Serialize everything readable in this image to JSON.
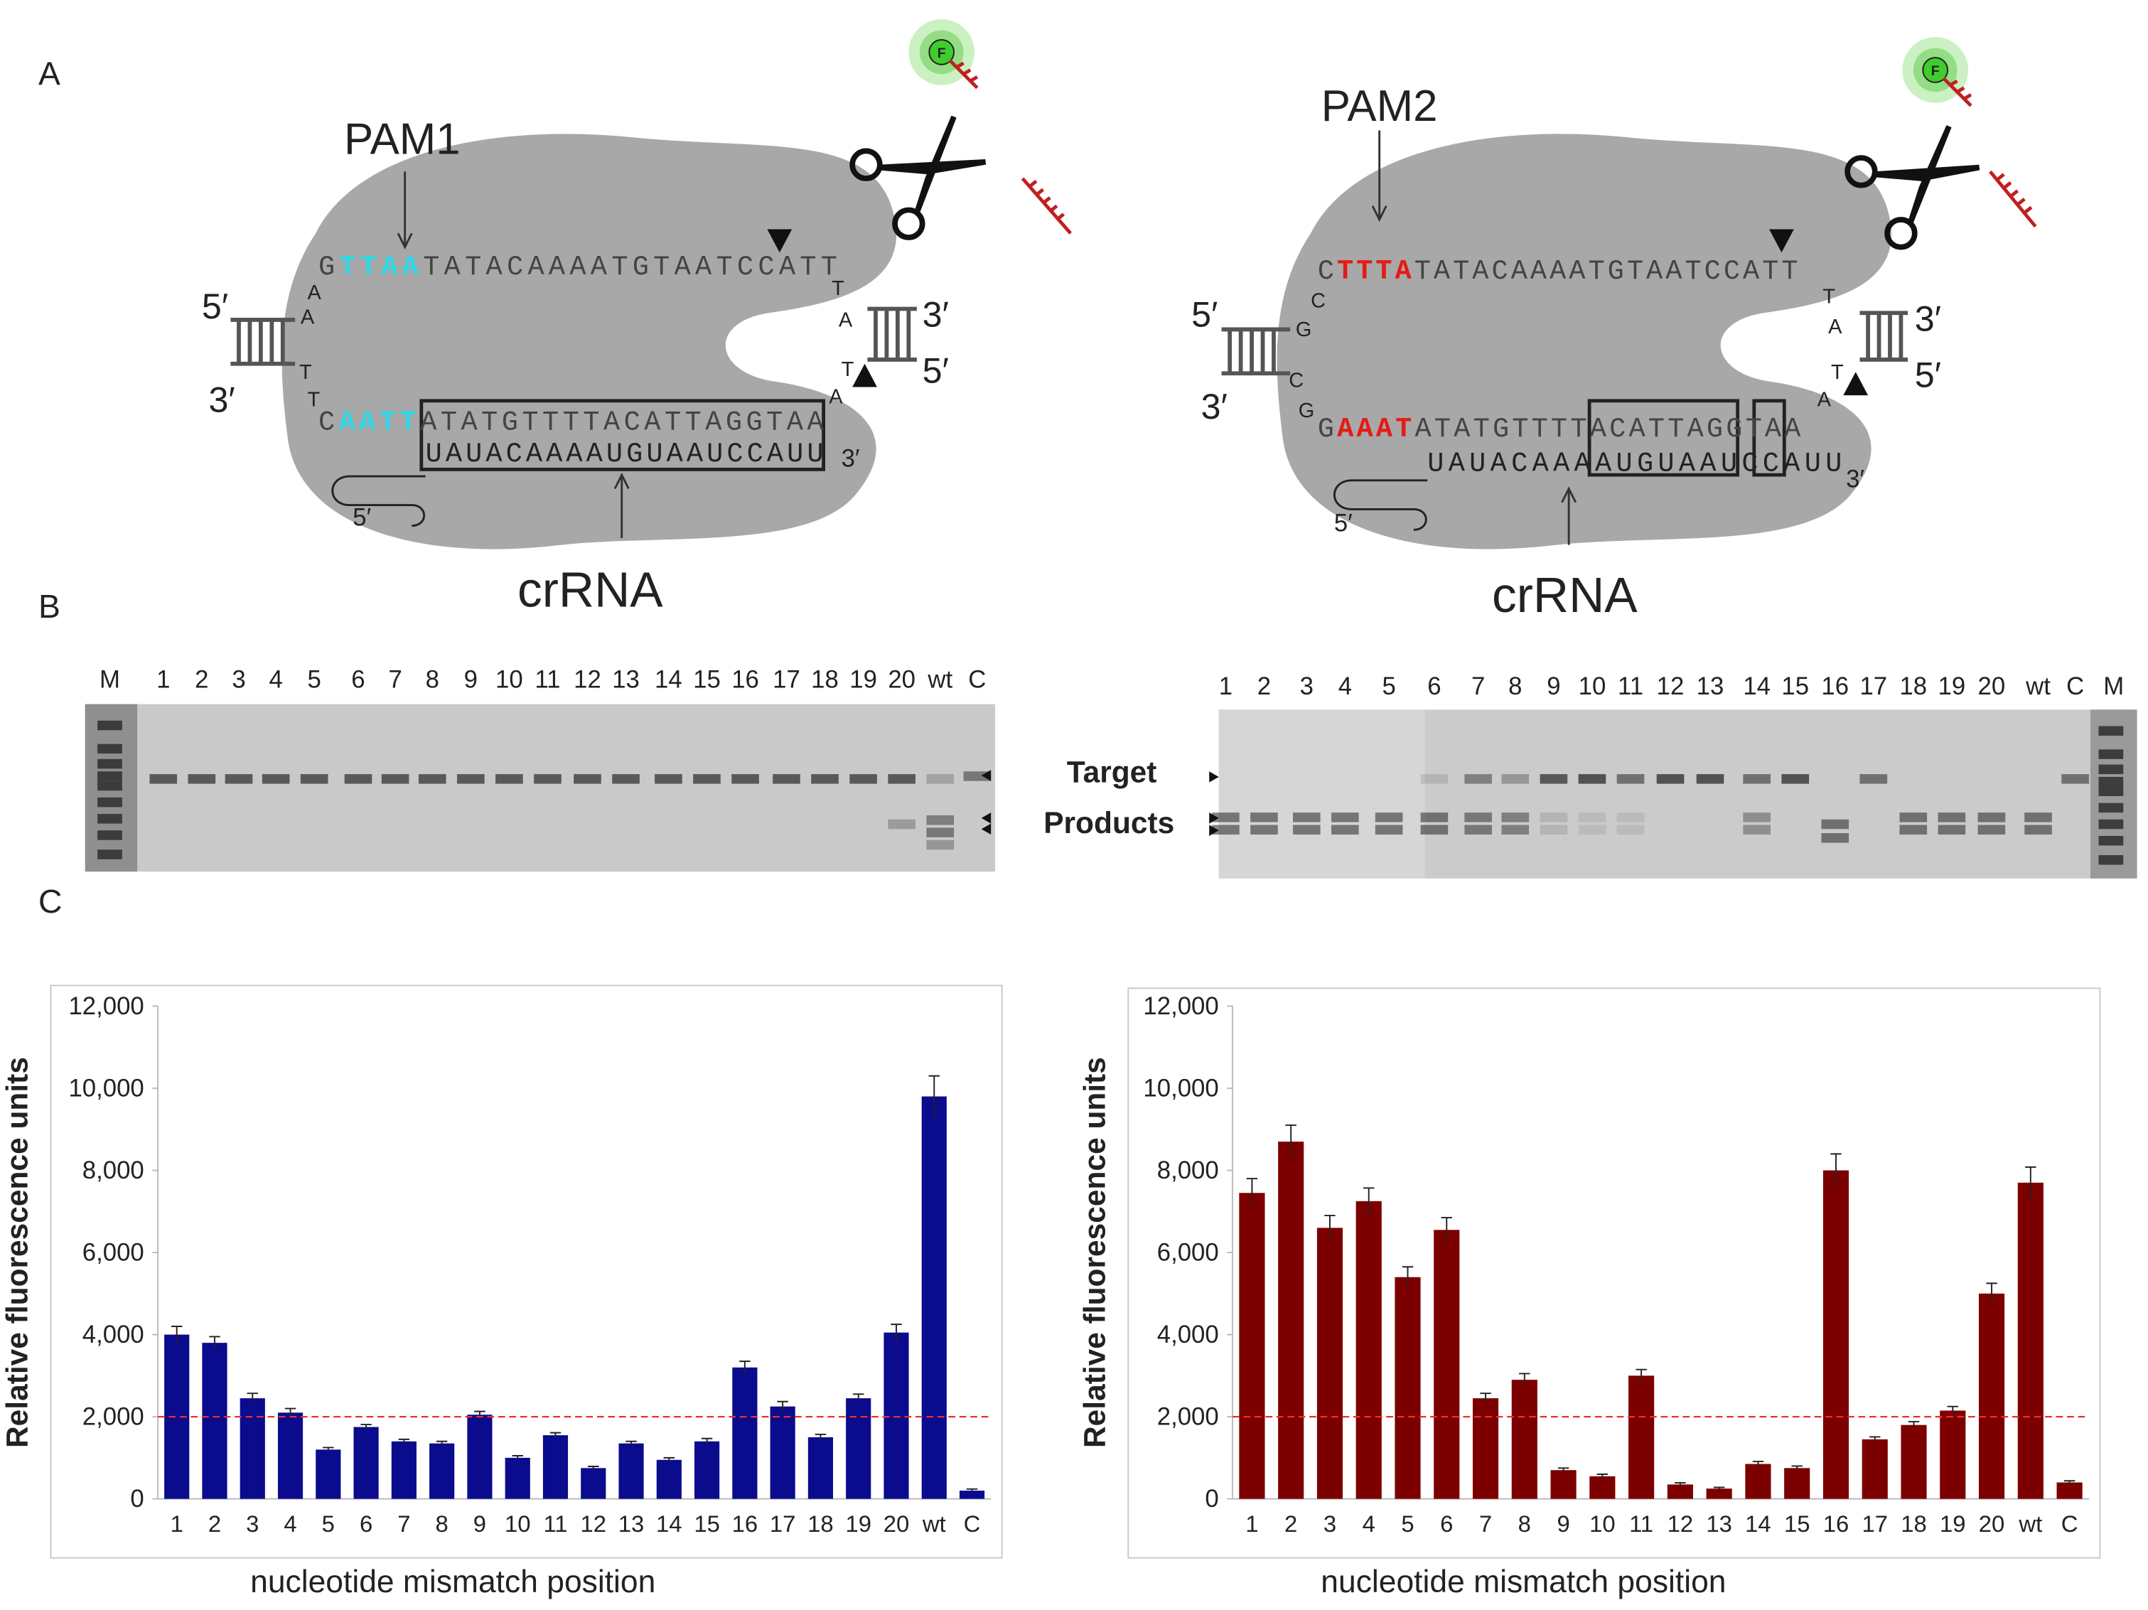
{
  "panel_labels": [
    "A",
    "B",
    "C"
  ],
  "panel_a": {
    "left": {
      "pam": "PAM1",
      "crrna": "crRNA",
      "top_sequence": [
        "G",
        "TTAA",
        "TATACAAAATGTAATCCATT"
      ],
      "bottom_sequence": [
        "C",
        "AATT",
        "ATATGTTTTACATTAGGTAA"
      ],
      "crrna_sequence": "UAUACAAAAUGUAAUCCAUU",
      "left_bases": [
        "A",
        "A",
        "T",
        "T"
      ],
      "right_bases": [
        "T",
        "A",
        "T",
        "A"
      ],
      "duplex_ends": [
        "5′",
        "3′",
        "3′",
        "5′"
      ],
      "crrna_ends": [
        "5′",
        "3′"
      ],
      "reporter": "F"
    },
    "right": {
      "pam": "PAM2",
      "crrna": "crRNA",
      "top_sequence": [
        "C",
        "TTTA",
        "TATACAAAATGTAATCCATT"
      ],
      "bottom_sequence": [
        "G",
        "AAAT",
        "ATATGTTTTACATTAGGTAA"
      ],
      "crrna_sequence": "UAUACAAAAUGUAAUCCAUU",
      "left_bases": [
        "C",
        "G",
        "C",
        "G"
      ],
      "right_bases": [
        "T",
        "A",
        "T",
        "A"
      ],
      "duplex_ends": [
        "5′",
        "3′",
        "3′",
        "5′"
      ],
      "crrna_ends": [
        "5′",
        "3′"
      ],
      "reporter": "F"
    }
  },
  "panel_b": {
    "left_lanes": [
      "M",
      "1",
      "2",
      "3",
      "4",
      "5",
      "6",
      "7",
      "8",
      "9",
      "10",
      "11",
      "12",
      "13",
      "14",
      "15",
      "16",
      "17",
      "18",
      "19",
      "20",
      "wt",
      "C"
    ],
    "right_lanes": [
      "1",
      "2",
      "3",
      "4",
      "5",
      "6",
      "7",
      "8",
      "9",
      "10",
      "11",
      "12",
      "13",
      "14",
      "15",
      "16",
      "17",
      "18",
      "19",
      "20",
      "wt",
      "C",
      "M"
    ],
    "target": "Target",
    "products": "Products"
  },
  "chart_data": [
    {
      "type": "bar",
      "categories": [
        "1",
        "2",
        "3",
        "4",
        "5",
        "6",
        "7",
        "8",
        "9",
        "10",
        "11",
        "12",
        "13",
        "14",
        "15",
        "16",
        "17",
        "18",
        "19",
        "20",
        "wt",
        "C"
      ],
      "values": [
        4000,
        3800,
        2450,
        2100,
        1200,
        1750,
        1400,
        1350,
        2050,
        1000,
        1550,
        750,
        1350,
        950,
        1400,
        3200,
        2250,
        1500,
        2450,
        4050,
        9800,
        200
      ],
      "errors": [
        200,
        150,
        120,
        100,
        50,
        60,
        50,
        50,
        80,
        50,
        60,
        40,
        50,
        50,
        70,
        150,
        120,
        70,
        100,
        200,
        500,
        40
      ],
      "color": "#0b0b8e",
      "ylim": [
        0,
        12000
      ],
      "yticks": [
        0,
        {
          "value": 2000,
          "label": "2,000"
        },
        {
          "value": 4000,
          "label": "4,000"
        },
        {
          "value": 6000,
          "label": "6,000"
        },
        {
          "value": 8000,
          "label": "8,000"
        },
        {
          "value": 10000,
          "label": "10,000"
        },
        {
          "value": 12000,
          "label": "12,000"
        }
      ],
      "ylabel": "Relative fluorescence units",
      "xlabel": "nucleotide mismatch position",
      "threshold": 2000,
      "threshold_color": "#e83030"
    },
    {
      "type": "bar",
      "categories": [
        "1",
        "2",
        "3",
        "4",
        "5",
        "6",
        "7",
        "8",
        "9",
        "10",
        "11",
        "12",
        "13",
        "14",
        "15",
        "16",
        "17",
        "18",
        "19",
        "20",
        "wt",
        "C"
      ],
      "values": [
        7450,
        8700,
        6600,
        7250,
        5400,
        6550,
        2450,
        2900,
        700,
        550,
        3000,
        350,
        250,
        850,
        750,
        8000,
        1450,
        1800,
        2150,
        5000,
        7700,
        400
      ],
      "errors": [
        350,
        400,
        300,
        320,
        250,
        300,
        120,
        150,
        50,
        50,
        150,
        40,
        30,
        60,
        50,
        400,
        60,
        80,
        100,
        250,
        380,
        40
      ],
      "color": "#7d0000",
      "ylim": [
        0,
        12000
      ],
      "yticks": [
        0,
        {
          "value": 2000,
          "label": "2,000"
        },
        {
          "value": 4000,
          "label": "4,000"
        },
        {
          "value": 6000,
          "label": "6,000"
        },
        {
          "value": 8000,
          "label": "8,000"
        },
        {
          "value": 10000,
          "label": "10,000"
        },
        {
          "value": 12000,
          "label": "12,000"
        }
      ],
      "ylabel": "Relative fluorescence units",
      "xlabel": "nucleotide mismatch position",
      "threshold": 2000,
      "threshold_color": "#e83030"
    }
  ]
}
